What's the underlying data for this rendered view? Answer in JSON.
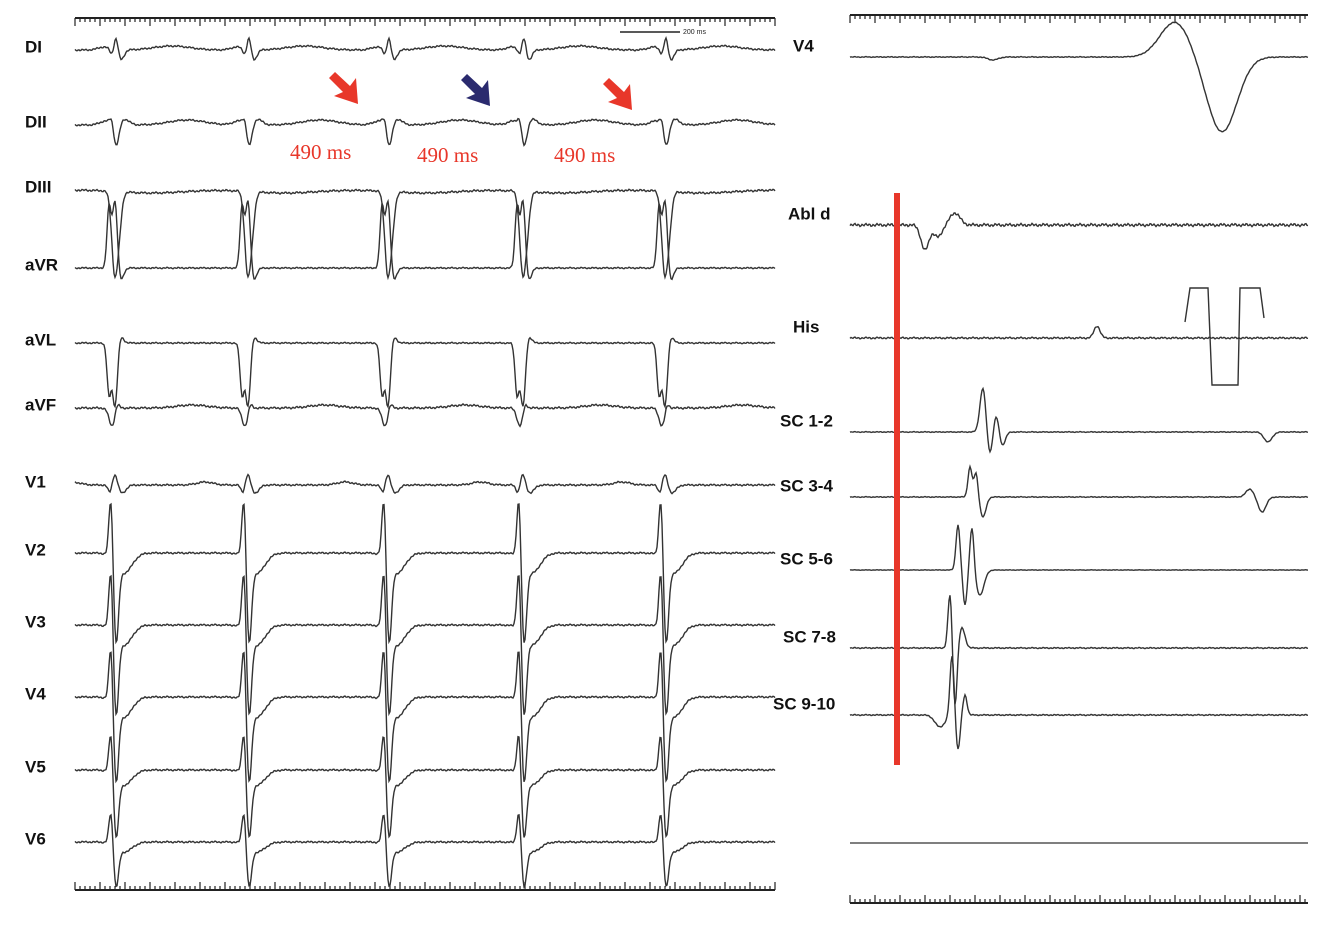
{
  "left_panel": {
    "leads": [
      "DI",
      "DII",
      "DIII",
      "aVR",
      "aVL",
      "aVF",
      "V1",
      "V2",
      "V3",
      "V4",
      "V5",
      "V6"
    ],
    "scale_label": "200 ms",
    "annotations": [
      "490 ms",
      "490 ms",
      "490 ms"
    ]
  },
  "right_panel": {
    "channels": [
      "V4",
      "Abl d",
      "His",
      "SC 1-2",
      "SC 3-4",
      "SC 5-6",
      "SC 7-8",
      "SC 9-10"
    ]
  }
}
